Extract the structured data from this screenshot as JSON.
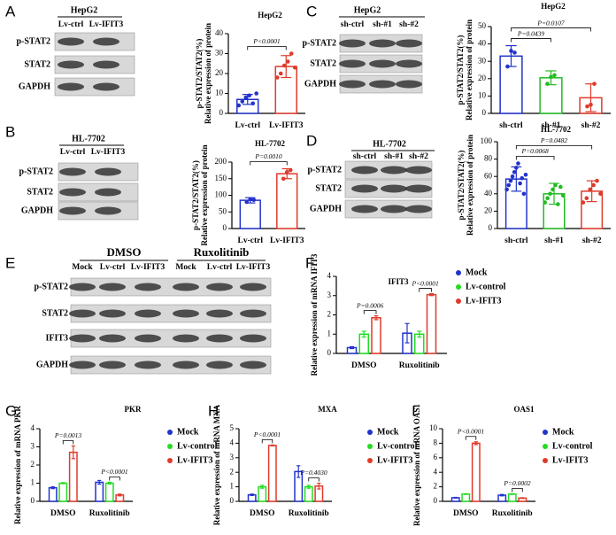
{
  "blots": [
    {
      "panel": "A",
      "header": "HepG2",
      "lanes": [
        "Lv-ctrl",
        "Lv-IFIT3"
      ],
      "rows": [
        "p-STAT2",
        "STAT2",
        "GAPDH"
      ]
    },
    {
      "panel": "B",
      "header": "HL-7702",
      "lanes": [
        "Lv-ctrl",
        "Lv-IFIT3"
      ],
      "rows": [
        "p-STAT2",
        "STAT2",
        "GAPDH"
      ]
    },
    {
      "panel": "C",
      "header": "HepG2",
      "lanes": [
        "sh-ctrl",
        "sh-#1",
        "sh-#2"
      ],
      "rows": [
        "p-STAT2",
        "STAT2",
        "GAPDH"
      ]
    },
    {
      "panel": "D",
      "header": "HL-7702",
      "lanes": [
        "sh-ctrl",
        "sh-#1",
        "sh-#2"
      ],
      "rows": [
        "p-STAT2",
        "STAT2",
        "GAPDH"
      ]
    },
    {
      "panel": "E",
      "groups": [
        "DMSO",
        "Ruxolitinib"
      ],
      "lanes": [
        "Mock",
        "Lv-ctrl",
        "Lv-IFIT3",
        "Mock",
        "Lv-ctrl",
        "Lv-IFIT3"
      ],
      "rows": [
        "p-STAT2",
        "STAT2",
        "IFIT3",
        "GAPDH"
      ]
    }
  ],
  "chart_data": [
    {
      "type": "bar",
      "title": "HepG2",
      "y_label": [
        "p-STAT2/STAT2(%)",
        "Relative expression of protein"
      ],
      "categories": [
        "Lv-ctrl",
        "Lv-IFIT3"
      ],
      "values": [
        7,
        23.5
      ],
      "errors": [
        2.5,
        5.5
      ],
      "colors": [
        "#2233cc",
        "#e03a2a"
      ],
      "points": [
        [
          4,
          6,
          8,
          9,
          5,
          10
        ],
        [
          18,
          20,
          24,
          26,
          30,
          23
        ]
      ],
      "ylim": [
        0,
        40
      ],
      "yticks": [
        0,
        10,
        20,
        30,
        40
      ],
      "annotations": [
        {
          "text": "P<0.0001",
          "between": [
            0,
            1
          ]
        }
      ]
    },
    {
      "type": "bar",
      "title": "HL-7702",
      "y_label": [
        "p-STAT2/STAT2(%)",
        "Relative expression of protein"
      ],
      "categories": [
        "Lv-ctrl",
        "Lv-IFIT3"
      ],
      "values": [
        85,
        165
      ],
      "errors": [
        8,
        15
      ],
      "colors": [
        "#2233cc",
        "#e03a2a"
      ],
      "points": [
        [
          80,
          88,
          86
        ],
        [
          150,
          170,
          176
        ]
      ],
      "ylim": [
        0,
        200
      ],
      "yticks": [
        0,
        50,
        100,
        150,
        200
      ],
      "annotations": [
        {
          "text": "P=0.0010",
          "between": [
            0,
            1
          ]
        }
      ]
    },
    {
      "type": "bar",
      "title": "HepG2",
      "y_label": [
        "p-STAT2/STAT2(%)",
        "Relative expression of protein"
      ],
      "categories": [
        "sh-ctrl",
        "sh-#1",
        "sh-#2"
      ],
      "values": [
        33,
        20.5,
        9
      ],
      "errors": [
        6,
        4,
        8
      ],
      "colors": [
        "#2233cc",
        "#22bb22",
        "#e03a2a"
      ],
      "points": [
        [
          27,
          36,
          35
        ],
        [
          17,
          21,
          22
        ],
        [
          4,
          5,
          17
        ]
      ],
      "ylim": [
        0,
        50
      ],
      "yticks": [
        0,
        10,
        20,
        30,
        40,
        50
      ],
      "annotations": [
        {
          "text": "P=0.0439",
          "between": [
            0,
            1
          ]
        },
        {
          "text": "P=0.0107",
          "between": [
            0,
            2
          ]
        }
      ]
    },
    {
      "type": "bar",
      "title": "HL-7702",
      "y_label": [
        "p-STAT2/STAT2(%)",
        "Relative expression of protein"
      ],
      "categories": [
        "sh-ctrl",
        "sh-#1",
        "sh-#2"
      ],
      "values": [
        57,
        40,
        43
      ],
      "errors": [
        14,
        12,
        12
      ],
      "colors": [
        "#2233cc",
        "#22bb22",
        "#e03a2a"
      ],
      "points": [
        [
          45,
          50,
          55,
          60,
          65,
          70,
          75,
          52,
          58,
          40,
          62
        ],
        [
          30,
          35,
          40,
          45,
          50,
          28,
          48,
          38
        ],
        [
          30,
          35,
          45,
          50,
          55,
          40
        ]
      ],
      "ylim": [
        0,
        100
      ],
      "yticks": [
        0,
        20,
        40,
        60,
        80,
        100
      ],
      "annotations": [
        {
          "text": "P=0.0068",
          "between": [
            0,
            1
          ]
        },
        {
          "text": "P=0.0482",
          "between": [
            0,
            2
          ]
        }
      ]
    },
    {
      "type": "bar",
      "panel": "F",
      "title": "IFIT3",
      "y_label": [
        "Relative expression of mRNA IFIT3"
      ],
      "categories": [
        "DMSO",
        "Ruxolitinib"
      ],
      "series": [
        {
          "name": "Mock",
          "color": "#2233cc",
          "values": [
            0.3,
            1.05
          ],
          "errors": [
            0.05,
            0.5
          ]
        },
        {
          "name": "Lv-control",
          "color": "#22dd22",
          "values": [
            1.0,
            1.0
          ],
          "errors": [
            0.15,
            0.15
          ]
        },
        {
          "name": "Lv-IFIT3",
          "color": "#e03a2a",
          "values": [
            1.85,
            3.05
          ],
          "errors": [
            0.1,
            0.05
          ]
        }
      ],
      "ylim": [
        0,
        4
      ],
      "yticks": [
        0,
        1,
        2,
        3,
        4
      ],
      "annotations": [
        {
          "text": "P=0.0006",
          "category": 0,
          "between": [
            1,
            2
          ]
        },
        {
          "text": "P<0.0001",
          "category": 1,
          "between": [
            1,
            2
          ]
        }
      ]
    },
    {
      "type": "bar",
      "panel": "G",
      "title": "PKR",
      "y_label": [
        "Relative expression of mRNA PKR"
      ],
      "categories": [
        "DMSO",
        "Ruxolitinib"
      ],
      "series": [
        {
          "name": "Mock",
          "color": "#2233cc",
          "values": [
            0.75,
            1.05
          ],
          "errors": [
            0.05,
            0.1
          ]
        },
        {
          "name": "Lv-control",
          "color": "#22dd22",
          "values": [
            1.0,
            1.0
          ],
          "errors": [
            0.03,
            0.05
          ]
        },
        {
          "name": "Lv-IFIT3",
          "color": "#e03a2a",
          "values": [
            2.7,
            0.35
          ],
          "errors": [
            0.35,
            0.05
          ]
        }
      ],
      "ylim": [
        0,
        4
      ],
      "yticks": [
        0,
        1,
        2,
        3,
        4
      ],
      "annotations": [
        {
          "text": "P=0.0013",
          "category": 0,
          "between": [
            1,
            2
          ]
        },
        {
          "text": "P<0.0001",
          "category": 1,
          "between": [
            1,
            2
          ]
        }
      ]
    },
    {
      "type": "bar",
      "panel": "H",
      "title": "MXA",
      "y_label": [
        "Relative expression of mRNA MXA"
      ],
      "categories": [
        "DMSO",
        "Ruxolitinib"
      ],
      "series": [
        {
          "name": "Mock",
          "color": "#2233cc",
          "values": [
            0.45,
            2.05
          ],
          "errors": [
            0.05,
            0.4
          ]
        },
        {
          "name": "Lv-control",
          "color": "#22dd22",
          "values": [
            1.0,
            1.0
          ],
          "errors": [
            0.1,
            0.1
          ]
        },
        {
          "name": "Lv-IFIT3",
          "color": "#e03a2a",
          "values": [
            3.85,
            1.05
          ],
          "errors": [
            0.03,
            0.2
          ]
        }
      ],
      "ylim": [
        0,
        5
      ],
      "yticks": [
        0,
        1,
        2,
        3,
        4,
        5
      ],
      "annotations": [
        {
          "text": "P<0.0001",
          "category": 0,
          "between": [
            1,
            2
          ]
        },
        {
          "text": "P=0.4030",
          "category": 1,
          "between": [
            1,
            2
          ]
        }
      ]
    },
    {
      "type": "bar",
      "panel": "I",
      "title": "OAS1",
      "y_label": [
        "Relative expression of mRNA OAS1"
      ],
      "categories": [
        "DMSO",
        "Ruxolitinib"
      ],
      "series": [
        {
          "name": "Mock",
          "color": "#2233cc",
          "values": [
            0.5,
            0.85
          ],
          "errors": [
            0.05,
            0.1
          ]
        },
        {
          "name": "Lv-control",
          "color": "#22dd22",
          "values": [
            1.0,
            1.0
          ],
          "errors": [
            0.05,
            0.05
          ]
        },
        {
          "name": "Lv-IFIT3",
          "color": "#e03a2a",
          "values": [
            8.0,
            0.45
          ],
          "errors": [
            0.2,
            0.05
          ]
        }
      ],
      "ylim": [
        0,
        10
      ],
      "yticks": [
        0,
        2,
        4,
        6,
        8,
        10
      ],
      "annotations": [
        {
          "text": "P<0.0001",
          "category": 0,
          "between": [
            1,
            2
          ]
        },
        {
          "text": "P=0.0002",
          "category": 1,
          "between": [
            1,
            2
          ]
        }
      ]
    }
  ]
}
